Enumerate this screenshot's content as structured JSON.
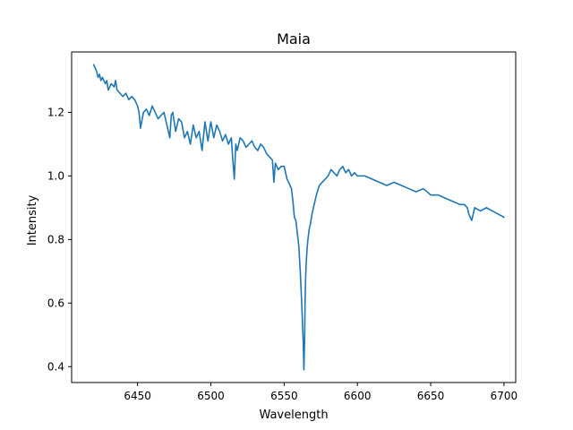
{
  "chart_data": {
    "type": "line",
    "title": "Maia",
    "xlabel": "Wavelength",
    "ylabel": "Intensity",
    "xlim": [
      6405,
      6708
    ],
    "ylim": [
      0.35,
      1.39
    ],
    "xticks": [
      6450,
      6500,
      6550,
      6600,
      6650,
      6700
    ],
    "yticks": [
      0.4,
      0.6,
      0.8,
      1.0,
      1.2
    ],
    "xtick_labels": [
      "6450",
      "6500",
      "6550",
      "6600",
      "6650",
      "6700"
    ],
    "ytick_labels": [
      "0.4",
      "0.6",
      "0.8",
      "1.0",
      "1.2"
    ],
    "grid": false,
    "series": [
      {
        "color": "#1f77b4",
        "x": [
          6420,
          6421,
          6422,
          6423,
          6424,
          6425,
          6426,
          6427,
          6428,
          6429,
          6430,
          6432,
          6434,
          6435,
          6436,
          6438,
          6440,
          6442,
          6444,
          6446,
          6448,
          6450,
          6451,
          6452,
          6454,
          6456,
          6458,
          6460,
          6462,
          6464,
          6466,
          6468,
          6470,
          6472,
          6473,
          6474,
          6476,
          6478,
          6480,
          6482,
          6484,
          6486,
          6488,
          6490,
          6492,
          6494,
          6496,
          6498,
          6500,
          6502,
          6504,
          6506,
          6508,
          6510,
          6512,
          6514,
          6515,
          6516,
          6517,
          6518,
          6520,
          6522,
          6524,
          6526,
          6528,
          6530,
          6532,
          6534,
          6536,
          6538,
          6540,
          6542,
          6543,
          6544,
          6546,
          6548,
          6550,
          6551,
          6552,
          6553,
          6554,
          6555,
          6556,
          6557,
          6558,
          6559,
          6560,
          6561,
          6562,
          6563,
          6563.5,
          6564,
          6564.3,
          6564.6,
          6565,
          6565.5,
          6566,
          6567,
          6568,
          6569,
          6570,
          6572,
          6574,
          6576,
          6578,
          6580,
          6582,
          6584,
          6586,
          6588,
          6590,
          6592,
          6594,
          6596,
          6598,
          6600,
          6605,
          6610,
          6615,
          6620,
          6625,
          6630,
          6635,
          6640,
          6645,
          6650,
          6655,
          6660,
          6665,
          6670,
          6673,
          6675,
          6676,
          6677,
          6678,
          6679,
          6680,
          6684,
          6688,
          6692,
          6696,
          6700
        ],
        "y": [
          1.35,
          1.34,
          1.33,
          1.31,
          1.32,
          1.3,
          1.31,
          1.3,
          1.29,
          1.3,
          1.27,
          1.29,
          1.28,
          1.3,
          1.27,
          1.26,
          1.25,
          1.26,
          1.24,
          1.25,
          1.24,
          1.22,
          1.2,
          1.15,
          1.2,
          1.21,
          1.19,
          1.22,
          1.2,
          1.18,
          1.19,
          1.2,
          1.16,
          1.12,
          1.19,
          1.2,
          1.14,
          1.18,
          1.17,
          1.12,
          1.14,
          1.1,
          1.16,
          1.12,
          1.14,
          1.08,
          1.17,
          1.11,
          1.17,
          1.12,
          1.16,
          1.14,
          1.11,
          1.13,
          1.1,
          1.12,
          1.05,
          0.99,
          1.1,
          1.08,
          1.12,
          1.11,
          1.09,
          1.1,
          1.11,
          1.09,
          1.08,
          1.1,
          1.09,
          1.07,
          1.06,
          1.05,
          0.98,
          1.04,
          1.02,
          1.03,
          1.03,
          1.01,
          0.99,
          0.98,
          0.97,
          0.96,
          0.92,
          0.87,
          0.86,
          0.82,
          0.78,
          0.7,
          0.6,
          0.48,
          0.39,
          0.5,
          0.6,
          0.67,
          0.72,
          0.76,
          0.79,
          0.83,
          0.85,
          0.88,
          0.9,
          0.94,
          0.97,
          0.98,
          0.99,
          1.0,
          1.02,
          1.01,
          1.0,
          1.02,
          1.03,
          1.01,
          1.02,
          1.0,
          1.01,
          1.0,
          1.0,
          0.99,
          0.98,
          0.97,
          0.98,
          0.97,
          0.96,
          0.95,
          0.96,
          0.94,
          0.94,
          0.93,
          0.92,
          0.91,
          0.91,
          0.9,
          0.88,
          0.87,
          0.86,
          0.88,
          0.9,
          0.89,
          0.9,
          0.89,
          0.88,
          0.87
        ]
      }
    ]
  }
}
